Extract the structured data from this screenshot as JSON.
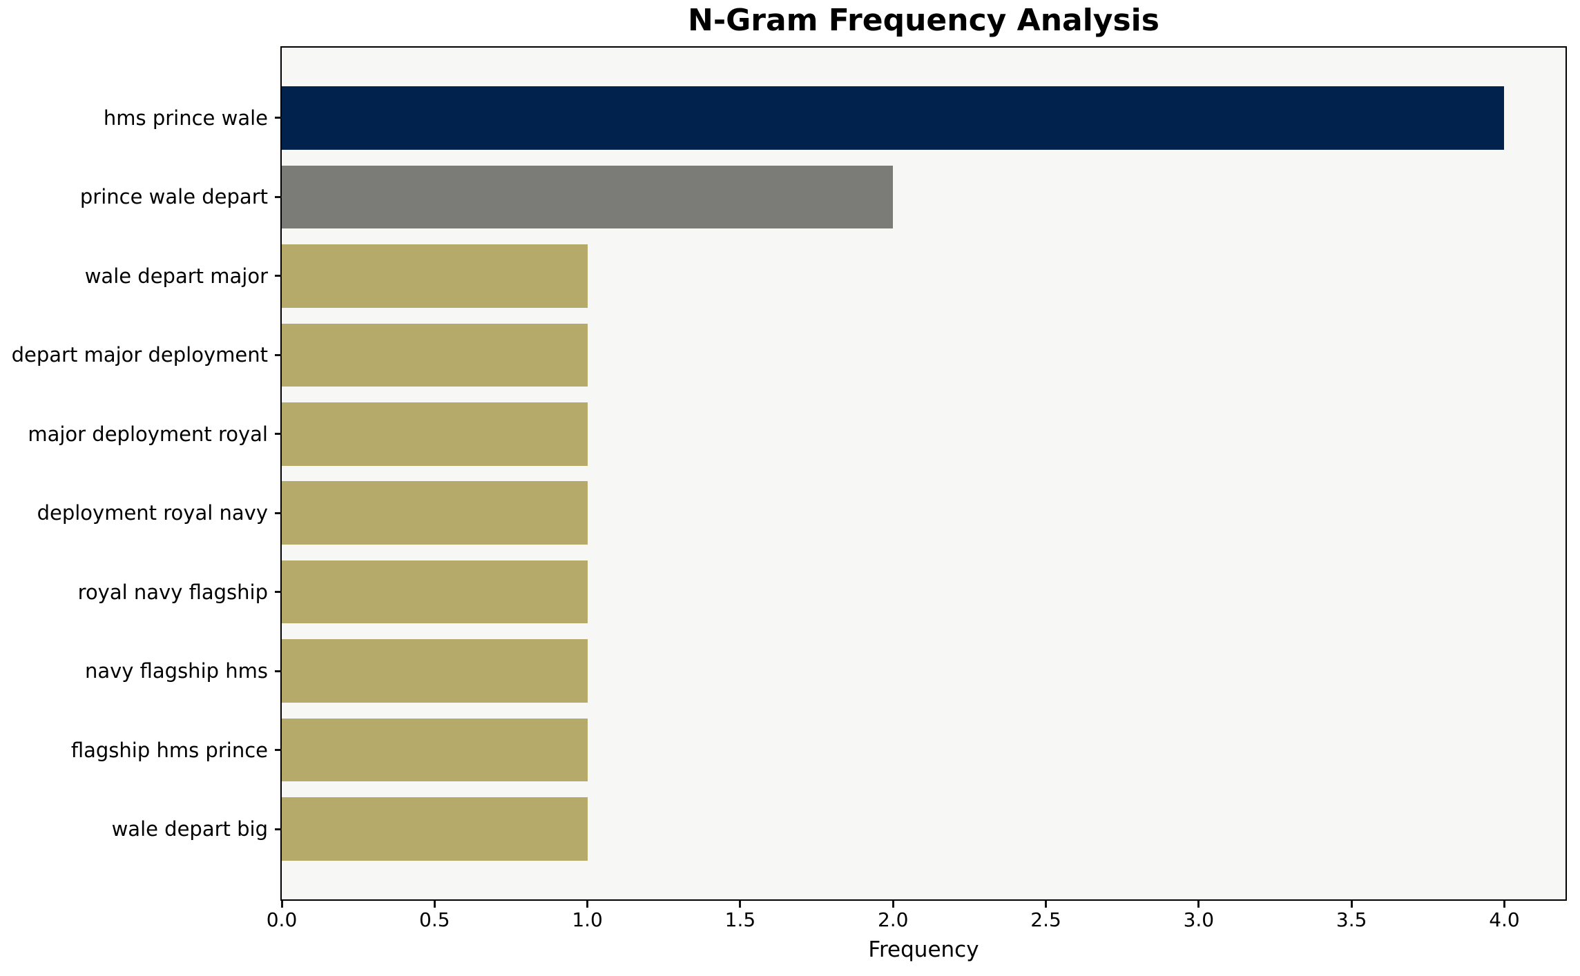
{
  "chart_data": {
    "type": "bar",
    "orientation": "horizontal",
    "title": "N-Gram Frequency Analysis",
    "xlabel": "Frequency",
    "ylabel": "",
    "categories": [
      "hms prince wale",
      "prince wale depart",
      "wale depart major",
      "depart major deployment",
      "major deployment royal",
      "deployment royal navy",
      "royal navy flagship",
      "navy flagship hms",
      "flagship hms prince",
      "wale depart big"
    ],
    "values": [
      4,
      2,
      1,
      1,
      1,
      1,
      1,
      1,
      1,
      1
    ],
    "bar_colors": [
      "#01224C",
      "#7B7B78",
      "#B6AA6A",
      "#B6AA6A",
      "#B6AA6A",
      "#B6AA6A",
      "#B6AA6A",
      "#B6AA6A",
      "#B6AA6A",
      "#B6AA6A"
    ],
    "xticks": [
      {
        "value": 0,
        "label": "0.0"
      },
      {
        "value": 0.5,
        "label": "0.5"
      },
      {
        "value": 1,
        "label": "1.0"
      },
      {
        "value": 1.5,
        "label": "1.5"
      },
      {
        "value": 2,
        "label": "2.0"
      },
      {
        "value": 2.5,
        "label": "2.5"
      },
      {
        "value": 3,
        "label": "3.0"
      },
      {
        "value": 3.5,
        "label": "3.5"
      },
      {
        "value": 4,
        "label": "4.0"
      }
    ],
    "xlim": [
      0,
      4.2
    ],
    "grid": false,
    "legend": null,
    "bar_fraction": 0.8,
    "y_margin_units": 0.49,
    "plot_bg": "#F7F7F6",
    "fig_bg": "#FFFFFF",
    "axis_color": "#000000",
    "text_color": "#000000"
  }
}
